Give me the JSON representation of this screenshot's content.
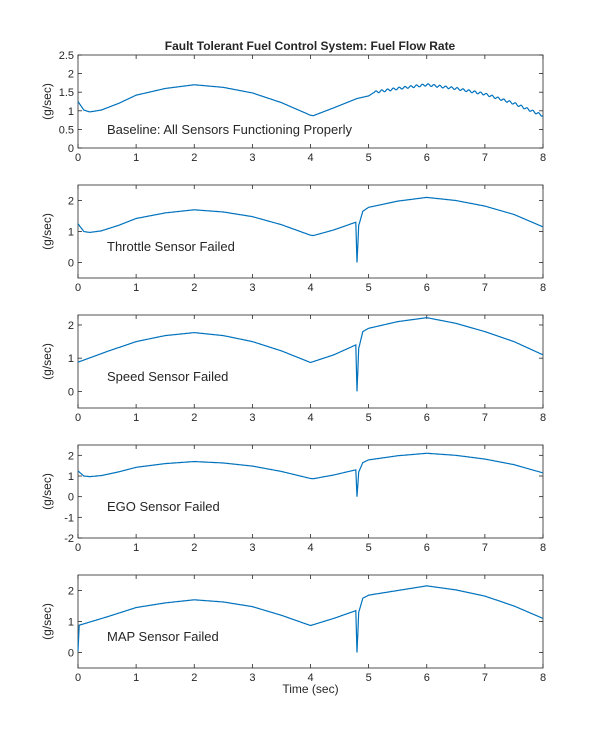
{
  "title": "Fault Tolerant Fuel Control System: Fuel Flow Rate",
  "line_color": "#0072BD",
  "chart_data": [
    {
      "type": "line",
      "ylabel": "(g/sec)",
      "xlabel": "",
      "annotation": "Baseline: All Sensors Functioning Properly",
      "xlim": [
        0,
        8
      ],
      "ylim": [
        0,
        2.5
      ],
      "xticks": [
        0,
        1,
        2,
        3,
        4,
        5,
        6,
        7,
        8
      ],
      "yticks": [
        0,
        0.5,
        1,
        1.5,
        2,
        2.5
      ],
      "oscillation": {
        "start": 5.1,
        "amplitude": 0.03,
        "period": 0.1
      },
      "points": [
        [
          0,
          1.25
        ],
        [
          0.1,
          1.02
        ],
        [
          0.2,
          0.97
        ],
        [
          0.4,
          1.02
        ],
        [
          0.7,
          1.2
        ],
        [
          1,
          1.42
        ],
        [
          1.5,
          1.6
        ],
        [
          2,
          1.7
        ],
        [
          2.5,
          1.63
        ],
        [
          3,
          1.48
        ],
        [
          3.5,
          1.22
        ],
        [
          4,
          0.88
        ],
        [
          4.05,
          0.87
        ],
        [
          4.4,
          1.08
        ],
        [
          4.8,
          1.33
        ],
        [
          5,
          1.4
        ],
        [
          5.1,
          1.5
        ],
        [
          5.5,
          1.6
        ],
        [
          6,
          1.7
        ],
        [
          6.5,
          1.6
        ],
        [
          7,
          1.45
        ],
        [
          7.5,
          1.2
        ],
        [
          8,
          0.87
        ]
      ]
    },
    {
      "type": "line",
      "ylabel": "(g/sec)",
      "xlabel": "",
      "annotation": "Throttle Sensor Failed",
      "xlim": [
        0,
        8
      ],
      "ylim": [
        -0.5,
        2.5
      ],
      "xticks": [
        0,
        1,
        2,
        3,
        4,
        5,
        6,
        7,
        8
      ],
      "yticks": [
        0,
        1,
        2
      ],
      "points": [
        [
          0,
          1.25
        ],
        [
          0.1,
          1.0
        ],
        [
          0.2,
          0.97
        ],
        [
          0.4,
          1.02
        ],
        [
          0.7,
          1.2
        ],
        [
          1,
          1.42
        ],
        [
          1.5,
          1.6
        ],
        [
          2,
          1.7
        ],
        [
          2.5,
          1.63
        ],
        [
          3,
          1.48
        ],
        [
          3.5,
          1.22
        ],
        [
          4,
          0.88
        ],
        [
          4.05,
          0.87
        ],
        [
          4.4,
          1.05
        ],
        [
          4.78,
          1.3
        ],
        [
          4.8,
          0.0
        ],
        [
          4.83,
          1.2
        ],
        [
          4.9,
          1.65
        ],
        [
          5,
          1.78
        ],
        [
          5.5,
          1.98
        ],
        [
          6,
          2.1
        ],
        [
          6.5,
          2.0
        ],
        [
          7,
          1.82
        ],
        [
          7.5,
          1.55
        ],
        [
          8,
          1.15
        ]
      ]
    },
    {
      "type": "line",
      "ylabel": "(g/sec)",
      "xlabel": "",
      "annotation": "Speed Sensor Failed",
      "xlim": [
        0,
        8
      ],
      "ylim": [
        -0.5,
        2.3
      ],
      "xticks": [
        0,
        1,
        2,
        3,
        4,
        5,
        6,
        7,
        8
      ],
      "yticks": [
        0,
        1,
        2
      ],
      "points": [
        [
          0,
          0.88
        ],
        [
          0.5,
          1.2
        ],
        [
          1,
          1.5
        ],
        [
          1.5,
          1.68
        ],
        [
          2,
          1.77
        ],
        [
          2.5,
          1.68
        ],
        [
          3,
          1.5
        ],
        [
          3.5,
          1.22
        ],
        [
          4,
          0.87
        ],
        [
          4.4,
          1.1
        ],
        [
          4.78,
          1.4
        ],
        [
          4.8,
          0
        ],
        [
          4.83,
          1.3
        ],
        [
          4.9,
          1.8
        ],
        [
          5,
          1.9
        ],
        [
          5.5,
          2.1
        ],
        [
          6,
          2.22
        ],
        [
          6.5,
          2.05
        ],
        [
          7,
          1.8
        ],
        [
          7.5,
          1.5
        ],
        [
          8,
          1.1
        ]
      ]
    },
    {
      "type": "line",
      "ylabel": "(g/sec)",
      "xlabel": "",
      "annotation": "EGO Sensor Failed",
      "xlim": [
        0,
        8
      ],
      "ylim": [
        -2,
        2.5
      ],
      "xticks": [
        0,
        1,
        2,
        3,
        4,
        5,
        6,
        7,
        8
      ],
      "yticks": [
        -2,
        -1,
        0,
        1,
        2
      ],
      "points": [
        [
          0,
          1.25
        ],
        [
          0.1,
          1.0
        ],
        [
          0.2,
          0.97
        ],
        [
          0.4,
          1.02
        ],
        [
          0.7,
          1.2
        ],
        [
          1,
          1.42
        ],
        [
          1.5,
          1.6
        ],
        [
          2,
          1.7
        ],
        [
          2.5,
          1.63
        ],
        [
          3,
          1.48
        ],
        [
          3.5,
          1.22
        ],
        [
          4,
          0.88
        ],
        [
          4.05,
          0.87
        ],
        [
          4.4,
          1.05
        ],
        [
          4.78,
          1.3
        ],
        [
          4.8,
          0.0
        ],
        [
          4.83,
          1.2
        ],
        [
          4.9,
          1.65
        ],
        [
          5,
          1.78
        ],
        [
          5.5,
          1.98
        ],
        [
          6,
          2.1
        ],
        [
          6.5,
          2.0
        ],
        [
          7,
          1.82
        ],
        [
          7.5,
          1.55
        ],
        [
          8,
          1.15
        ]
      ]
    },
    {
      "type": "line",
      "ylabel": "(g/sec)",
      "xlabel": "Time (sec)",
      "annotation": "MAP Sensor Failed",
      "xlim": [
        0,
        8
      ],
      "ylim": [
        -0.5,
        2.5
      ],
      "xticks": [
        0,
        1,
        2,
        3,
        4,
        5,
        6,
        7,
        8
      ],
      "yticks": [
        0,
        1,
        2
      ],
      "points": [
        [
          0,
          0.05
        ],
        [
          0.02,
          0.88
        ],
        [
          0.5,
          1.15
        ],
        [
          1,
          1.45
        ],
        [
          1.5,
          1.6
        ],
        [
          2,
          1.7
        ],
        [
          2.5,
          1.63
        ],
        [
          3,
          1.48
        ],
        [
          3.5,
          1.2
        ],
        [
          4,
          0.87
        ],
        [
          4.4,
          1.1
        ],
        [
          4.78,
          1.35
        ],
        [
          4.8,
          0
        ],
        [
          4.83,
          1.3
        ],
        [
          4.9,
          1.75
        ],
        [
          5,
          1.85
        ],
        [
          5.5,
          2.0
        ],
        [
          6,
          2.15
        ],
        [
          6.5,
          2.02
        ],
        [
          7,
          1.82
        ],
        [
          7.5,
          1.5
        ],
        [
          8,
          1.1
        ]
      ]
    }
  ]
}
